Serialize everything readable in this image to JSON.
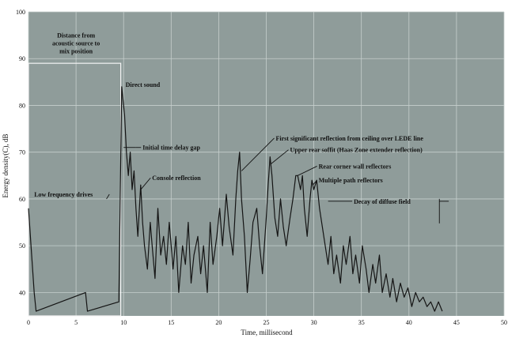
{
  "chart_data": {
    "type": "line",
    "title": "",
    "xlabel": "Time, millisecond",
    "ylabel": "Energy density(C), dB",
    "xlim": [
      0,
      50
    ],
    "ylim": [
      35,
      100
    ],
    "x_ticks": [
      0,
      5,
      10,
      15,
      20,
      25,
      30,
      35,
      40,
      45,
      50
    ],
    "y_ticks": [
      40,
      50,
      60,
      70,
      80,
      90,
      100
    ],
    "grid": true,
    "colors": {
      "background": "#8f9c9a",
      "grid": "#c6cfcd",
      "trace": "#141414",
      "text": "#111111"
    },
    "series": [
      {
        "values": [
          [
            0.0,
            58
          ],
          [
            0.2,
            52
          ],
          [
            0.4,
            46
          ],
          [
            0.6,
            40
          ],
          [
            0.8,
            36
          ],
          [
            6.0,
            40
          ],
          [
            6.2,
            36
          ],
          [
            9.5,
            38
          ],
          [
            9.8,
            84
          ],
          [
            10.1,
            78
          ],
          [
            10.3,
            70
          ],
          [
            10.5,
            65
          ],
          [
            10.7,
            70
          ],
          [
            10.9,
            62
          ],
          [
            11.1,
            66
          ],
          [
            11.3,
            58
          ],
          [
            11.5,
            52
          ],
          [
            11.8,
            63
          ],
          [
            12.0,
            55
          ],
          [
            12.2,
            50
          ],
          [
            12.5,
            45
          ],
          [
            12.8,
            55
          ],
          [
            13.0,
            50
          ],
          [
            13.3,
            43
          ],
          [
            13.6,
            58
          ],
          [
            13.9,
            48
          ],
          [
            14.2,
            52
          ],
          [
            14.5,
            46
          ],
          [
            14.8,
            55
          ],
          [
            15.2,
            45
          ],
          [
            15.5,
            52
          ],
          [
            15.8,
            40
          ],
          [
            16.2,
            50
          ],
          [
            16.5,
            46
          ],
          [
            16.8,
            55
          ],
          [
            17.1,
            42
          ],
          [
            17.4,
            48
          ],
          [
            17.8,
            52
          ],
          [
            18.1,
            44
          ],
          [
            18.4,
            50
          ],
          [
            18.8,
            40
          ],
          [
            19.1,
            55
          ],
          [
            19.4,
            46
          ],
          [
            19.8,
            52
          ],
          [
            20.1,
            58
          ],
          [
            20.4,
            50
          ],
          [
            20.8,
            61
          ],
          [
            21.1,
            54
          ],
          [
            21.5,
            48
          ],
          [
            21.8,
            60
          ],
          [
            22.0,
            66
          ],
          [
            22.2,
            70
          ],
          [
            22.4,
            60
          ],
          [
            22.7,
            52
          ],
          [
            23.0,
            40
          ],
          [
            23.3,
            47
          ],
          [
            23.6,
            55
          ],
          [
            24.0,
            58
          ],
          [
            24.3,
            50
          ],
          [
            24.6,
            44
          ],
          [
            25.0,
            56
          ],
          [
            25.2,
            63
          ],
          [
            25.4,
            69
          ],
          [
            25.6,
            65
          ],
          [
            25.9,
            56
          ],
          [
            26.2,
            52
          ],
          [
            26.5,
            60
          ],
          [
            26.8,
            54
          ],
          [
            27.1,
            50
          ],
          [
            27.5,
            56
          ],
          [
            27.8,
            60
          ],
          [
            28.1,
            65
          ],
          [
            28.3,
            65
          ],
          [
            28.6,
            62
          ],
          [
            28.8,
            65
          ],
          [
            29.0,
            58
          ],
          [
            29.3,
            52
          ],
          [
            29.6,
            60
          ],
          [
            29.8,
            64
          ],
          [
            30.0,
            62
          ],
          [
            30.3,
            64
          ],
          [
            30.6,
            58
          ],
          [
            30.9,
            54
          ],
          [
            31.2,
            50
          ],
          [
            31.5,
            46
          ],
          [
            31.8,
            52
          ],
          [
            32.1,
            44
          ],
          [
            32.4,
            48
          ],
          [
            32.8,
            42
          ],
          [
            33.1,
            50
          ],
          [
            33.4,
            46
          ],
          [
            33.8,
            52
          ],
          [
            34.1,
            44
          ],
          [
            34.4,
            48
          ],
          [
            34.8,
            42
          ],
          [
            35.1,
            50
          ],
          [
            35.5,
            45
          ],
          [
            35.8,
            40
          ],
          [
            36.2,
            46
          ],
          [
            36.5,
            42
          ],
          [
            36.9,
            48
          ],
          [
            37.2,
            40
          ],
          [
            37.6,
            44
          ],
          [
            38.0,
            39
          ],
          [
            38.3,
            43
          ],
          [
            38.7,
            38
          ],
          [
            39.1,
            42
          ],
          [
            39.5,
            39
          ],
          [
            39.9,
            41
          ],
          [
            40.3,
            37
          ],
          [
            40.7,
            40
          ],
          [
            41.1,
            38
          ],
          [
            41.5,
            39
          ],
          [
            41.9,
            37
          ],
          [
            42.3,
            38
          ],
          [
            42.7,
            36
          ],
          [
            43.1,
            38
          ],
          [
            43.5,
            36
          ]
        ]
      }
    ],
    "regions": [
      {
        "x_from": 0,
        "x_to": 9.7,
        "y_top": 89
      }
    ],
    "annotations": [
      {
        "id": "distance",
        "text_lines": [
          "Distance from",
          "acoustic source to",
          "mix position"
        ],
        "x": 5,
        "y": 94.5
      },
      {
        "id": "direct-sound",
        "text_lines": [
          "Direct sound"
        ],
        "x": 10.2,
        "y": 84
      },
      {
        "id": "itdg",
        "text_lines": [
          "Initial time delay gap"
        ],
        "x": 12,
        "y": 70.5,
        "bracket_from": 10,
        "bracket_to": 11.3
      },
      {
        "id": "console",
        "text_lines": [
          "Console reflection"
        ],
        "x": 13,
        "y": 64,
        "arrow_to": [
          11.8,
          62
        ]
      },
      {
        "id": "low-freq",
        "text_lines": [
          "Low frequency drives"
        ],
        "x": 0.6,
        "y": 60.5,
        "arrow_to": [
          8.2,
          60
        ]
      },
      {
        "id": "first-sig",
        "text_lines": [
          "First significant reflection from ceiling over LEDE line"
        ],
        "x": 26,
        "y": 72.5,
        "arrow_to": [
          22.4,
          66
        ]
      },
      {
        "id": "upper-rear",
        "text_lines": [
          "Upper rear soffit (Haas Zone extender reflection)"
        ],
        "x": 27.5,
        "y": 70,
        "arrow_to": [
          25.5,
          67.5
        ]
      },
      {
        "id": "rear-corner",
        "text_lines": [
          "Rear corner wall reflectors"
        ],
        "x": 30.5,
        "y": 66.5,
        "arrow_to": [
          28.3,
          65
        ]
      },
      {
        "id": "multi-path",
        "text_lines": [
          "Multiple path reflectors"
        ],
        "x": 30.5,
        "y": 63.5,
        "arrow_to": [
          29.9,
          63
        ]
      },
      {
        "id": "decay",
        "text_lines": [
          "Decay of diffuse field"
        ],
        "x": 34.2,
        "y": 59,
        "span_from": 31.5,
        "span_to": 43.2
      }
    ]
  }
}
